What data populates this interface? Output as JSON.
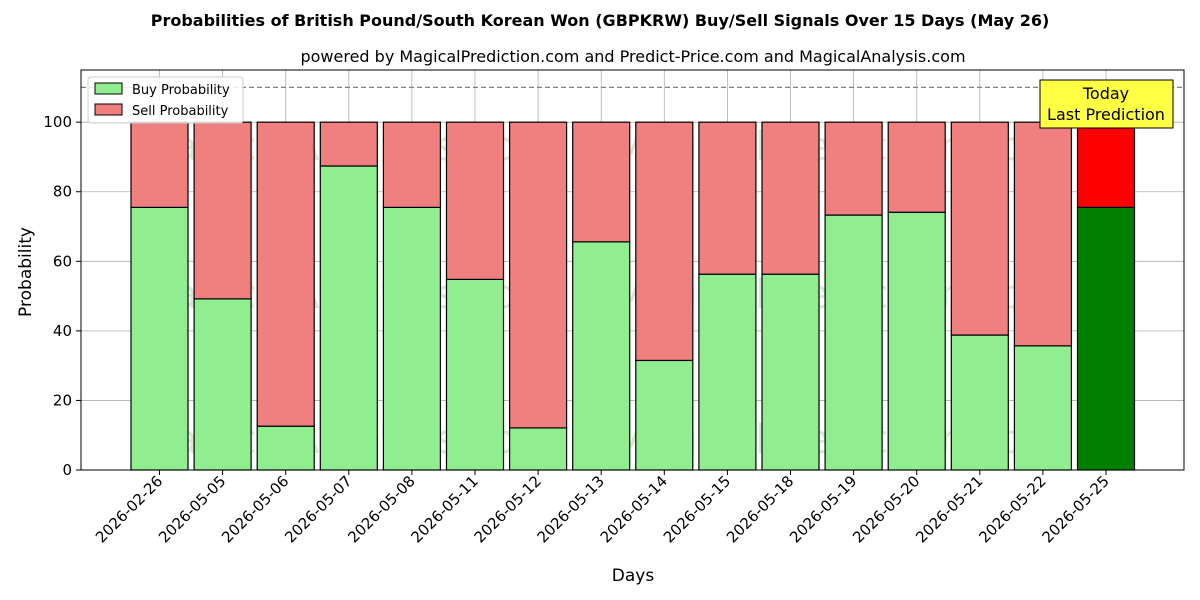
{
  "chart_data": {
    "type": "bar",
    "stacked": true,
    "title": "Probabilities of British Pound/South Korean Won (GBPKRW) Buy/Sell Signals Over 15 Days (May 26)",
    "subtitle": "powered by MagicalPrediction.com and Predict-Price.com and MagicalAnalysis.com",
    "xlabel": "Days",
    "ylabel": "Probability",
    "ylim": [
      0,
      115
    ],
    "yticks": [
      0,
      20,
      40,
      60,
      80,
      100
    ],
    "grid": true,
    "legend_position": "top-left",
    "reference_line": 110,
    "categories": [
      "2026-02-26",
      "2026-05-05",
      "2026-05-06",
      "2026-05-07",
      "2026-05-08",
      "2026-05-11",
      "2026-05-12",
      "2026-05-13",
      "2026-05-14",
      "2026-05-15",
      "2026-05-18",
      "2026-05-19",
      "2026-05-20",
      "2026-05-21",
      "2026-05-22",
      "2026-05-25"
    ],
    "series": [
      {
        "name": "Buy Probability",
        "color": "#90ee90",
        "highlight_color": "#008000",
        "values": [
          75.5,
          49.2,
          12.6,
          87.4,
          75.5,
          54.8,
          12.1,
          65.6,
          31.5,
          56.3,
          56.3,
          73.3,
          74.1,
          38.8,
          35.7,
          75.5
        ]
      },
      {
        "name": "Sell Probability",
        "color": "#f08080",
        "highlight_color": "#ff0000",
        "values": [
          24.5,
          50.8,
          87.4,
          12.6,
          24.5,
          45.2,
          87.9,
          34.4,
          68.5,
          43.7,
          43.7,
          26.7,
          25.9,
          61.2,
          64.3,
          24.5
        ]
      }
    ],
    "highlight_index": 15,
    "annotation": {
      "line1": "Today",
      "line2": "Last Prediction",
      "color": "#ffff44"
    },
    "watermarks": [
      "MagicalAnalysis.com",
      "MagicalPrediction.com"
    ]
  }
}
